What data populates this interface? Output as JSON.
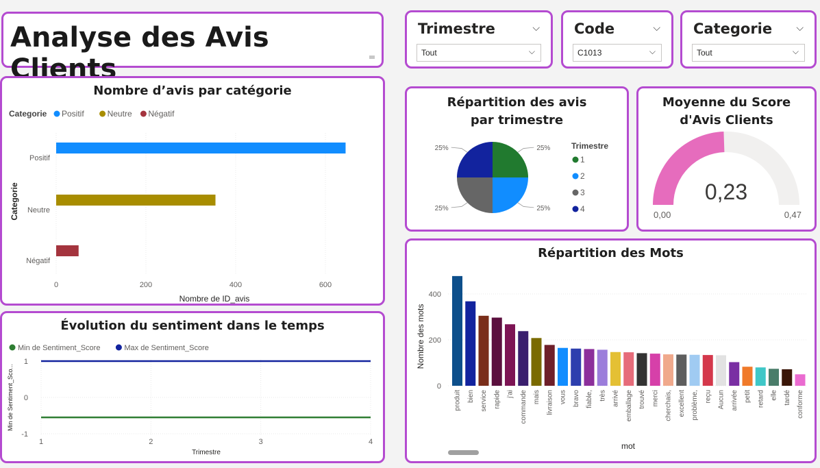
{
  "report_title": "Analyse des Avis Clients",
  "slicers": {
    "trimestre": {
      "label": "Trimestre",
      "value": "Tout"
    },
    "code": {
      "label": "Code",
      "value": "C1013"
    },
    "categorie": {
      "label": "Categorie",
      "value": "Tout"
    }
  },
  "colors": {
    "accent_border": "#b44bd0",
    "positif": "#118dff",
    "neutre": "#a88d00",
    "negatif": "#a4343e",
    "gauge_fill": "#e66cbd",
    "gauge_bg": "#f1f0ef",
    "line_min": "#2e7d32",
    "line_max": "#12239e"
  },
  "charts": [
    {
      "title": "Nombre d’avis par catégorie",
      "chart_data": {
        "type": "bar",
        "orientation": "horizontal",
        "legend_title": "Categorie",
        "legend": [
          "Positif",
          "Neutre",
          "Négatif"
        ],
        "categories": [
          "Positif",
          "Neutre",
          "Négatif"
        ],
        "values": [
          645,
          355,
          50
        ],
        "xlabel": "Nombre de ID_avis",
        "ylabel": "Categorie",
        "xticks": [
          0,
          200,
          400,
          600
        ],
        "xlim": [
          0,
          680
        ]
      }
    },
    {
      "title": "Évolution du sentiment dans le temps",
      "chart_data": {
        "type": "line",
        "legend": [
          "Min de Sentiment_Score",
          "Max de Sentiment_Score"
        ],
        "x": [
          1,
          2,
          3,
          4
        ],
        "series": [
          {
            "name": "Min de Sentiment_Score",
            "values": [
              -0.55,
              -0.55,
              -0.55,
              -0.55
            ]
          },
          {
            "name": "Max de Sentiment_Score",
            "values": [
              1,
              1,
              1,
              1
            ]
          }
        ],
        "xlabel": "Trimestre",
        "ylabel": "Min de Sentiment_Sco...",
        "yticks": [
          1,
          0,
          -1
        ],
        "xticks": [
          1,
          2,
          3,
          4
        ],
        "ylim": [
          -1.1,
          1.1
        ]
      }
    },
    {
      "title": "Répartition des avis par trimestre",
      "chart_data": {
        "type": "pie",
        "legend_title": "Trimestre",
        "labels": [
          "1",
          "2",
          "3",
          "4"
        ],
        "values": [
          25,
          25,
          25,
          25
        ],
        "data_labels": [
          "25%",
          "25%",
          "25%",
          "25%"
        ]
      }
    },
    {
      "title": "Moyenne du Score d'Avis Clients",
      "chart_data": {
        "type": "gauge",
        "value": 0.23,
        "value_label": "0,23",
        "min_label": "0,00",
        "max_label": "0,47",
        "min": 0,
        "max": 0.47
      }
    },
    {
      "title": "Répartition des Mots",
      "chart_data": {
        "type": "bar",
        "categories": [
          "produit",
          "bien",
          "service",
          "rapide",
          "j'ai",
          "commande",
          "mais",
          "livraison",
          "vous",
          "bravo",
          "fiable,",
          "très",
          "arrivé",
          "emballage",
          "trouvé",
          "merci",
          "cherchais,",
          "excellent",
          "problème,",
          "reçu",
          "Aucun",
          "arrivée",
          "petit",
          "retard",
          "elle",
          "tardé",
          "conforme"
        ],
        "values": [
          478,
          368,
          305,
          297,
          268,
          238,
          208,
          178,
          165,
          162,
          160,
          157,
          147,
          146,
          142,
          140,
          137,
          136,
          135,
          134,
          133,
          103,
          83,
          80,
          74,
          72,
          50
        ],
        "bar_colors": [
          "#0d4f8b",
          "#12239e",
          "#7a2e1a",
          "#5b0f3e",
          "#7d1454",
          "#3a1f6e",
          "#7a6a00",
          "#6e1f2a",
          "#118dff",
          "#2d3fae",
          "#8c2f9b",
          "#9b7ddb",
          "#e4c034",
          "#e66c7a",
          "#333333",
          "#d640a9",
          "#f0a98c",
          "#5e5e5e",
          "#a0cbf2",
          "#d4384b",
          "#e2e2e2",
          "#7a2fa3",
          "#f07a2a",
          "#3fc7c7",
          "#4a7d6a",
          "#3a1608",
          "#ea6bd0"
        ],
        "xlabel": "mot",
        "ylabel": "Nombre des mots",
        "yticks": [
          0,
          200,
          400
        ],
        "ylim": [
          0,
          500
        ]
      }
    }
  ]
}
